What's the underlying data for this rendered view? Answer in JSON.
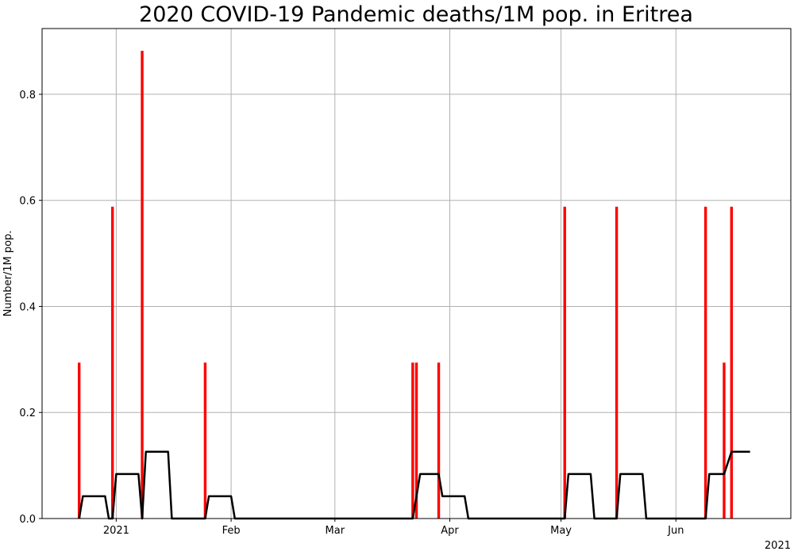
{
  "chart_data": {
    "type": "bar",
    "title": "2020 COVID-19 Pandemic deaths/1M pop. in Eritrea",
    "ylabel": "Number/1M pop.",
    "xlabel": "",
    "year_label": "2021",
    "x_range": [
      "2020-12-12",
      "2021-07-02"
    ],
    "ylim": [
      0,
      0.924
    ],
    "grid": true,
    "y_ticks": [
      0.0,
      0.2,
      0.4,
      0.6,
      0.8
    ],
    "y_tick_labels": [
      "0.0",
      "0.2",
      "0.4",
      "0.6",
      "0.8"
    ],
    "x_ticks": [
      "2021-01-01",
      "2021-02-01",
      "2021-03-01",
      "2021-04-01",
      "2021-05-01",
      "2021-06-01"
    ],
    "x_tick_labels": [
      "2021",
      "Feb",
      "Mar",
      "Apr",
      "May",
      "Jun"
    ],
    "series": [
      {
        "kind": "bar",
        "color": "#ff0000",
        "points": [
          {
            "x": "2020-12-22",
            "y": 0.294
          },
          {
            "x": "2020-12-31",
            "y": 0.588
          },
          {
            "x": "2021-01-08",
            "y": 0.882
          },
          {
            "x": "2021-01-25",
            "y": 0.294
          },
          {
            "x": "2021-03-22",
            "y": 0.294
          },
          {
            "x": "2021-03-23",
            "y": 0.294
          },
          {
            "x": "2021-03-29",
            "y": 0.294
          },
          {
            "x": "2021-05-02",
            "y": 0.588
          },
          {
            "x": "2021-05-16",
            "y": 0.588
          },
          {
            "x": "2021-06-09",
            "y": 0.588
          },
          {
            "x": "2021-06-14",
            "y": 0.294
          },
          {
            "x": "2021-06-16",
            "y": 0.588
          }
        ]
      },
      {
        "kind": "line",
        "color": "#000000",
        "points": [
          {
            "x": "2020-12-22",
            "y": 0
          },
          {
            "x": "2020-12-23",
            "y": 0.042
          },
          {
            "x": "2020-12-29",
            "y": 0.042
          },
          {
            "x": "2020-12-30",
            "y": 0
          },
          {
            "x": "2020-12-31",
            "y": 0
          },
          {
            "x": "2021-01-01",
            "y": 0.084
          },
          {
            "x": "2021-01-07",
            "y": 0.084
          },
          {
            "x": "2021-01-08",
            "y": 0
          },
          {
            "x": "2021-01-09",
            "y": 0.126
          },
          {
            "x": "2021-01-15",
            "y": 0.126
          },
          {
            "x": "2021-01-16",
            "y": 0
          },
          {
            "x": "2021-01-25",
            "y": 0
          },
          {
            "x": "2021-01-26",
            "y": 0.042
          },
          {
            "x": "2021-02-01",
            "y": 0.042
          },
          {
            "x": "2021-02-02",
            "y": 0
          },
          {
            "x": "2021-03-22",
            "y": 0
          },
          {
            "x": "2021-03-23",
            "y": 0.042
          },
          {
            "x": "2021-03-24",
            "y": 0.084
          },
          {
            "x": "2021-03-29",
            "y": 0.084
          },
          {
            "x": "2021-03-30",
            "y": 0.042
          },
          {
            "x": "2021-04-05",
            "y": 0.042
          },
          {
            "x": "2021-04-06",
            "y": 0
          },
          {
            "x": "2021-05-02",
            "y": 0
          },
          {
            "x": "2021-05-03",
            "y": 0.084
          },
          {
            "x": "2021-05-09",
            "y": 0.084
          },
          {
            "x": "2021-05-10",
            "y": 0
          },
          {
            "x": "2021-05-16",
            "y": 0
          },
          {
            "x": "2021-05-17",
            "y": 0.084
          },
          {
            "x": "2021-05-23",
            "y": 0.084
          },
          {
            "x": "2021-05-24",
            "y": 0
          },
          {
            "x": "2021-06-09",
            "y": 0
          },
          {
            "x": "2021-06-10",
            "y": 0.084
          },
          {
            "x": "2021-06-14",
            "y": 0.084
          },
          {
            "x": "2021-06-16",
            "y": 0.126
          },
          {
            "x": "2021-06-21",
            "y": 0.126
          }
        ]
      }
    ]
  }
}
